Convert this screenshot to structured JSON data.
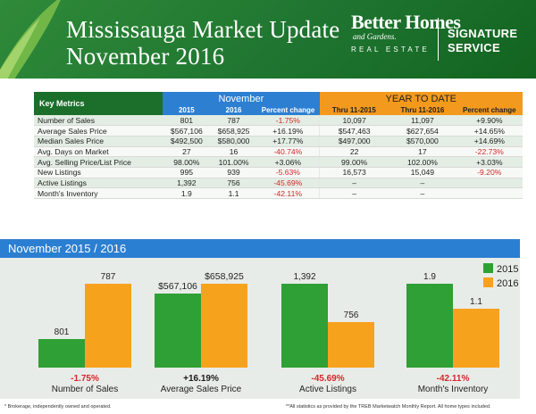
{
  "header": {
    "title_line1": "Mississauga Market Update",
    "title_line2": "November 2016",
    "brand_line1": "Better Homes",
    "brand_line2": "and Gardens.",
    "brand_sub": "REAL ESTATE",
    "service_line1": "SIGNATURE",
    "service_line2": "SERVICE"
  },
  "table": {
    "key_metrics_label": "Key Metrics",
    "november_label": "November",
    "ytd_label": "YEAR TO DATE",
    "sub_headers": [
      "2015",
      "2016",
      "Percent change",
      "Thru 11-2015",
      "Thru 11-2016",
      "Percent change"
    ],
    "rows": [
      {
        "label": "Number of Sales",
        "nov2015": "801",
        "nov2016": "787",
        "nov_pct": "-1.75%",
        "ytd2015": "10,097",
        "ytd2016": "11,097",
        "ytd_pct": "+9.90%"
      },
      {
        "label": "Average Sales Price",
        "nov2015": "$567,106",
        "nov2016": "$658,925",
        "nov_pct": "+16.19%",
        "ytd2015": "$547,463",
        "ytd2016": "$627,654",
        "ytd_pct": "+14.65%"
      },
      {
        "label": "Median Sales Price",
        "nov2015": "$492,500",
        "nov2016": "$580,000",
        "nov_pct": "+17.77%",
        "ytd2015": "$497,000",
        "ytd2016": "$570,000",
        "ytd_pct": "+14.69%"
      },
      {
        "label": "Avg. Days on Market",
        "nov2015": "27",
        "nov2016": "16",
        "nov_pct": "-40.74%",
        "ytd2015": "22",
        "ytd2016": "17",
        "ytd_pct": "-22.73%"
      },
      {
        "label": "Avg. Selling Price/List Price",
        "nov2015": "98.00%",
        "nov2016": "101.00%",
        "nov_pct": "+3.06%",
        "ytd2015": "99.00%",
        "ytd2016": "102.00%",
        "ytd_pct": "+3.03%"
      },
      {
        "label": "New Listings",
        "nov2015": "995",
        "nov2016": "939",
        "nov_pct": "-5.63%",
        "ytd2015": "16,573",
        "ytd2016": "15,049",
        "ytd_pct": "-9.20%"
      },
      {
        "label": "Active Listings",
        "nov2015": "1,392",
        "nov2016": "756",
        "nov_pct": "-45.69%",
        "ytd2015": "–",
        "ytd2016": "–",
        "ytd_pct": ""
      },
      {
        "label": "Month's Inventory",
        "nov2015": "1.9",
        "nov2016": "1.1",
        "nov_pct": "-42.11%",
        "ytd2015": "–",
        "ytd2016": "–",
        "ytd_pct": ""
      }
    ]
  },
  "chart_section_title": "November 2015 / 2016",
  "colors": {
    "green": "#2fa036",
    "orange": "#f7a21c",
    "negative": "#d6262a",
    "positive": "#1a1a1a"
  },
  "chart_data": {
    "type": "bar",
    "series": [
      {
        "name": "2015"
      },
      {
        "name": "2016"
      }
    ],
    "groups": [
      {
        "category": "Number of Sales",
        "values": [
          801,
          787
        ],
        "labels": [
          "801",
          "787"
        ],
        "change": "-1.75%"
      },
      {
        "category": "Average Sales Price",
        "values": [
          567106,
          658925
        ],
        "labels": [
          "$567,106",
          "$658,925"
        ],
        "change": "+16.19%"
      },
      {
        "category": "Active Listings",
        "values": [
          1392,
          756
        ],
        "labels": [
          "1,392",
          "756"
        ],
        "change": "-45.69%"
      },
      {
        "category": "Month's Inventory",
        "values": [
          1.9,
          1.1
        ],
        "labels": [
          "1.9",
          "1.1"
        ],
        "change": "-42.11%"
      }
    ]
  },
  "footer": {
    "left": "* Brokerage, independently owned and operated.",
    "right": "**All statistics as provided by the TREB Marketwatch Monthly Report. All home types included."
  }
}
